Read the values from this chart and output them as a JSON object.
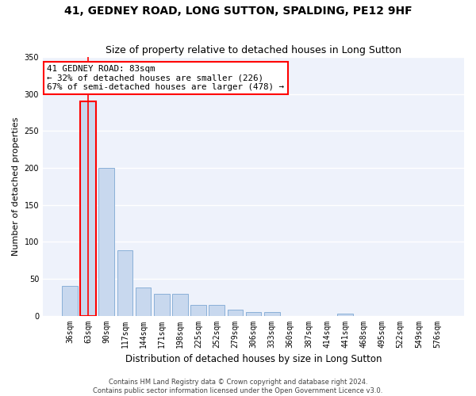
{
  "title1": "41, GEDNEY ROAD, LONG SUTTON, SPALDING, PE12 9HF",
  "title2": "Size of property relative to detached houses in Long Sutton",
  "xlabel": "Distribution of detached houses by size in Long Sutton",
  "ylabel": "Number of detached properties",
  "footer1": "Contains HM Land Registry data © Crown copyright and database right 2024.",
  "footer2": "Contains public sector information licensed under the Open Government Licence v3.0.",
  "categories": [
    "36sqm",
    "63sqm",
    "90sqm",
    "117sqm",
    "144sqm",
    "171sqm",
    "198sqm",
    "225sqm",
    "252sqm",
    "279sqm",
    "306sqm",
    "333sqm",
    "360sqm",
    "387sqm",
    "414sqm",
    "441sqm",
    "468sqm",
    "495sqm",
    "522sqm",
    "549sqm",
    "576sqm"
  ],
  "values": [
    40,
    290,
    200,
    88,
    38,
    30,
    30,
    15,
    15,
    8,
    5,
    5,
    0,
    0,
    0,
    3,
    0,
    0,
    0,
    0,
    0
  ],
  "bar_color": "#c8d8ee",
  "bar_edge_color": "#8ab0d8",
  "highlight_bar_index": 1,
  "highlight_edge_color": "red",
  "vline_color": "red",
  "annotation_title": "41 GEDNEY ROAD: 83sqm",
  "annotation_line1": "← 32% of detached houses are smaller (226)",
  "annotation_line2": "67% of semi-detached houses are larger (478) →",
  "annotation_box_color": "white",
  "annotation_box_edge_color": "red",
  "ylim": [
    0,
    350
  ],
  "yticks": [
    0,
    50,
    100,
    150,
    200,
    250,
    300,
    350
  ],
  "bg_color": "#eef2fb",
  "grid_color": "white",
  "title1_fontsize": 10,
  "title2_fontsize": 9,
  "xlabel_fontsize": 8.5,
  "ylabel_fontsize": 8,
  "tick_fontsize": 7,
  "ann_fontsize": 7.8
}
